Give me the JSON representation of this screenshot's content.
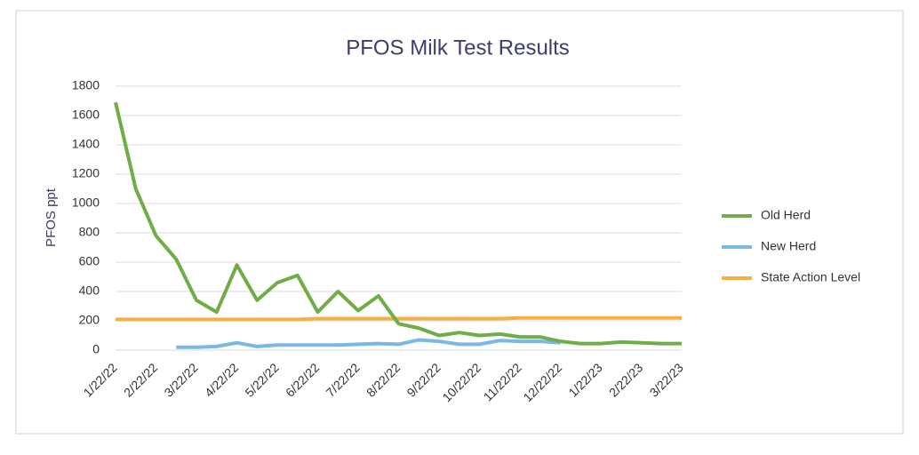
{
  "chart_data": {
    "type": "line",
    "title": "PFOS Milk Test Results",
    "y_label": "PFOS ppt",
    "categories": [
      "1/22/22",
      null,
      "2/22/22",
      null,
      "3/22/22",
      null,
      "4/22/22",
      null,
      "5/22/22",
      null,
      "6/22/22",
      null,
      "7/22/22",
      null,
      "8/22/22",
      null,
      "9/22/22",
      null,
      "10/22/22",
      null,
      "11/22/22",
      null,
      "12/22/22",
      null,
      "1/22/23",
      null,
      "2/22/23",
      null,
      "3/22/23"
    ],
    "series": [
      {
        "name": "Old Herd",
        "color": "#70ad47",
        "values": [
          1690,
          1100,
          780,
          620,
          340,
          260,
          580,
          340,
          460,
          510,
          260,
          400,
          270,
          370,
          180,
          150,
          100,
          120,
          100,
          110,
          90,
          90,
          60,
          45,
          45,
          55,
          50,
          45,
          45
        ]
      },
      {
        "name": "New Herd",
        "color": "#7ab8e6",
        "values": [
          null,
          null,
          null,
          20,
          20,
          25,
          50,
          25,
          35,
          35,
          35,
          35,
          40,
          45,
          40,
          70,
          60,
          40,
          40,
          65,
          60,
          60,
          50,
          null,
          null,
          null,
          null,
          null,
          null
        ]
      },
      {
        "name": "State Action Level",
        "color": "#f5b042",
        "values": [
          210,
          210,
          210,
          210,
          210,
          210,
          210,
          210,
          210,
          210,
          215,
          215,
          215,
          215,
          215,
          215,
          215,
          215,
          215,
          215,
          220,
          220,
          220,
          220,
          220,
          220,
          220,
          220,
          220
        ]
      }
    ],
    "ylim": [
      0,
      1800
    ],
    "yticks": [
      0,
      200,
      400,
      600,
      800,
      1000,
      1200,
      1400,
      1600,
      1800
    ],
    "grid": true,
    "legend": "right"
  }
}
